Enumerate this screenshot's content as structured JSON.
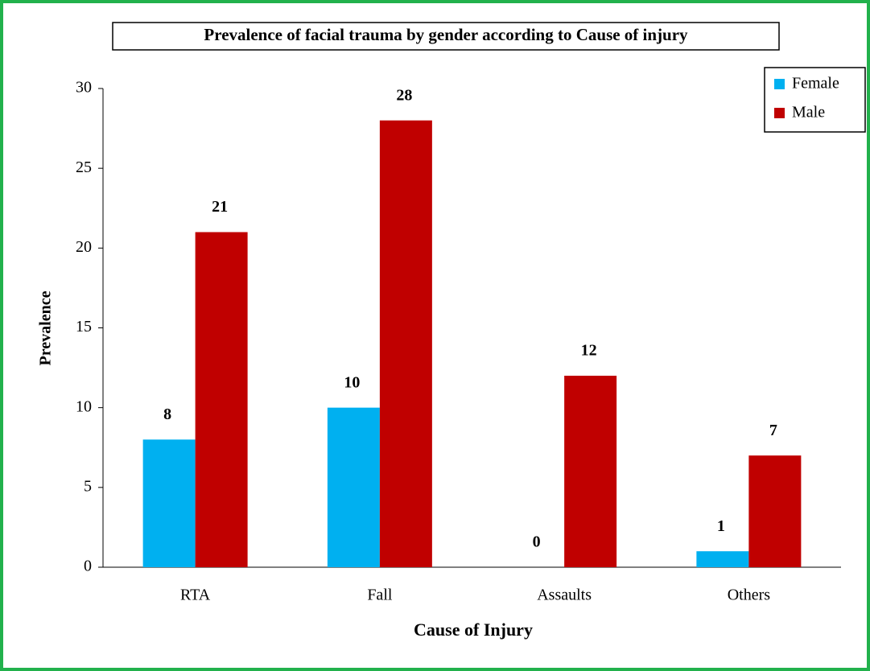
{
  "chart_data": {
    "type": "bar",
    "title": "Prevalence of facial trauma by gender according to Cause of injury",
    "x_label": "Cause of Injury",
    "y_label": "Prevalence",
    "categories": [
      "RTA",
      "Fall",
      "Assaults",
      "Others"
    ],
    "series": [
      {
        "name": "Female",
        "color": "#00b0f0",
        "values": [
          8,
          10,
          0,
          1
        ]
      },
      {
        "name": "Male",
        "color": "#c00000",
        "values": [
          21,
          28,
          12,
          7
        ]
      }
    ],
    "ylim": [
      0,
      30
    ],
    "yticks": [
      0,
      5,
      10,
      15,
      20,
      25,
      30
    ],
    "grid": false,
    "legend": "upper right"
  }
}
